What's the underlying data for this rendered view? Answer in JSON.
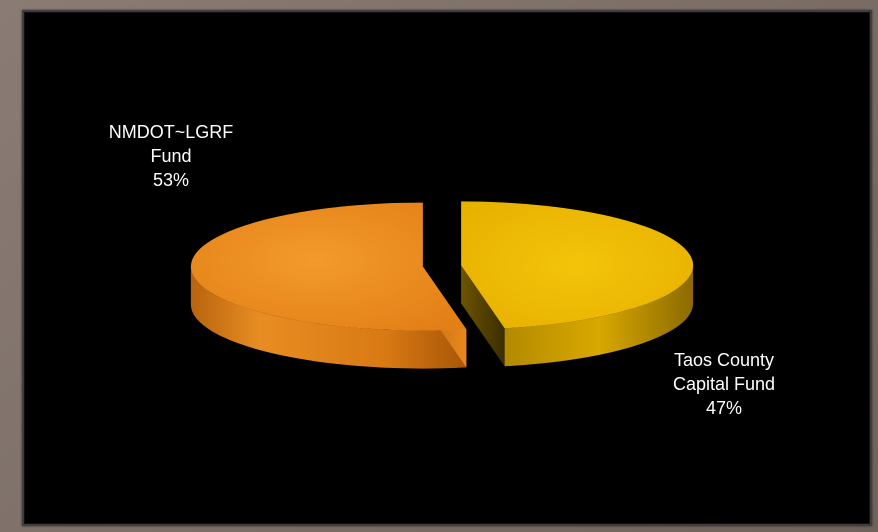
{
  "chart_data": {
    "type": "pie",
    "style": "3d-exploded",
    "slices": [
      {
        "label_lines": [
          "NMDOT~LGRF",
          "Fund"
        ],
        "percent_label": "53%",
        "value": 53,
        "color": "#e8891e"
      },
      {
        "label_lines": [
          "Taos County",
          "Capital Fund"
        ],
        "percent_label": "47%",
        "value": 47,
        "color": "#ebb906"
      }
    ]
  }
}
